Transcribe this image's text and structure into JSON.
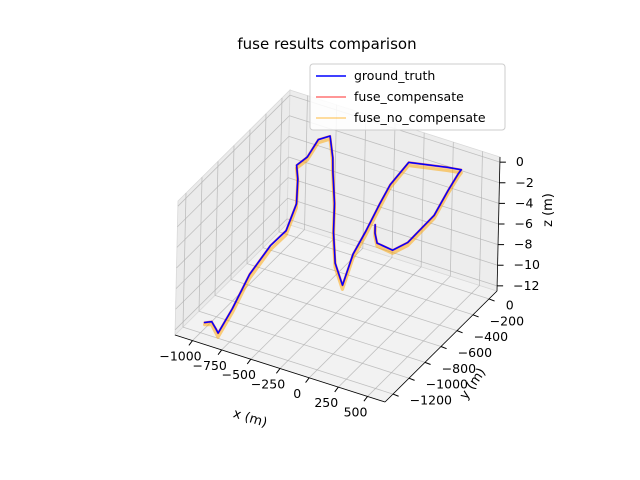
{
  "chart_data": {
    "type": "line",
    "projection": "3d",
    "title": "fuse results comparison",
    "xlabel": "x (m)",
    "ylabel": "y (m)",
    "zlabel": "z (m)",
    "xlim": [
      -1150,
      650
    ],
    "ylim": [
      -1300,
      100
    ],
    "zlim": [
      -12.5,
      0.5
    ],
    "x_ticks": [
      -1000,
      -750,
      -500,
      -250,
      0,
      250,
      500
    ],
    "x_tick_labels": [
      "−1000",
      "−750",
      "−500",
      "−250",
      "0",
      "250",
      "500"
    ],
    "y_ticks": [
      -1200,
      -1000,
      -800,
      -600,
      -400,
      -200,
      0
    ],
    "y_tick_labels": [
      "−1200",
      "−1000",
      "−800",
      "−600",
      "−400",
      "−200",
      "0"
    ],
    "z_ticks": [
      -12,
      -10,
      -8,
      -6,
      -4,
      -2,
      0
    ],
    "z_tick_labels": [
      "−12",
      "−10",
      "−8",
      "−6",
      "−4",
      "−2",
      "0"
    ],
    "grid": true,
    "legend_position": "top-right",
    "series": [
      {
        "name": "ground_truth",
        "color": "#0000ff",
        "x": [
          -980,
          -940,
          -900,
          -850,
          -800,
          -780,
          -740,
          -690,
          -700,
          -760,
          -820,
          -870,
          -860,
          -780,
          -680,
          -610,
          -430,
          -300,
          -160,
          -40,
          -10,
          -5,
          10,
          20,
          60,
          300,
          430,
          470,
          480,
          460,
          360,
          280,
          100,
          40,
          0
        ],
        "y": [
          -1180,
          -1150,
          -1150,
          -1200,
          -1100,
          -920,
          -720,
          -600,
          -460,
          -360,
          -290,
          -80,
          40,
          70,
          -40,
          -140,
          -380,
          -580,
          -760,
          -840,
          -760,
          -610,
          -460,
          -350,
          -180,
          -40,
          -60,
          -160,
          -300,
          -440,
          -620,
          -690,
          -620,
          -560,
          -500
        ],
        "z": [
          -11.6,
          -11.6,
          -12.2,
          -12.0,
          -10.2,
          -8.2,
          -6.8,
          -6.1,
          -4.6,
          -3.2,
          -2.6,
          -3.6,
          -2.8,
          -2.4,
          -3.3,
          -3.6,
          -4.2,
          -5.0,
          -6.1,
          -7.2,
          -4.7,
          -3.6,
          -2.0,
          -1.0,
          0.0,
          -0.7,
          -0.3,
          0.2,
          -0.3,
          -1.7,
          -3.3,
          -3.8,
          -4.3,
          -4.0,
          -3.8
        ]
      },
      {
        "name": "fuse_compensate",
        "color": "#ff0000",
        "opacity": 0.55,
        "x": [
          -980,
          -940,
          -900,
          -850,
          -800,
          -780,
          -740,
          -690,
          -700,
          -760,
          -820,
          -870,
          -860,
          -780,
          -680,
          -610,
          -430,
          -300,
          -160,
          -40,
          -10,
          -5,
          10,
          20,
          60,
          300,
          430,
          470,
          480,
          460,
          360,
          280,
          100,
          40,
          0
        ],
        "y": [
          -1180,
          -1150,
          -1150,
          -1200,
          -1100,
          -920,
          -720,
          -600,
          -460,
          -360,
          -290,
          -80,
          40,
          70,
          -40,
          -140,
          -380,
          -580,
          -760,
          -840,
          -760,
          -610,
          -460,
          -350,
          -180,
          -40,
          -60,
          -160,
          -300,
          -440,
          -620,
          -690,
          -620,
          -560,
          -500
        ],
        "z": [
          -11.6,
          -11.6,
          -12.2,
          -12.0,
          -10.2,
          -8.2,
          -6.8,
          -6.1,
          -4.6,
          -3.2,
          -2.6,
          -3.6,
          -2.8,
          -2.4,
          -3.3,
          -3.6,
          -4.2,
          -5.0,
          -6.1,
          -7.2,
          -4.7,
          -3.6,
          -2.0,
          -1.0,
          0.0,
          -0.7,
          -0.3,
          0.2,
          -0.3,
          -1.7,
          -3.3,
          -3.8,
          -4.3,
          -4.0,
          -3.8
        ]
      },
      {
        "name": "fuse_no_compensate",
        "color": "#ffa500",
        "opacity": 0.5,
        "x": [
          -980,
          -940,
          -900,
          -850,
          -800,
          -780,
          -740,
          -690,
          -700,
          -760,
          -820,
          -870,
          -860,
          -780,
          -680,
          -610,
          -430,
          -300,
          -160,
          -40,
          -10,
          -5,
          10,
          20,
          60,
          300,
          430,
          470,
          480,
          460,
          360,
          280,
          100,
          40,
          0
        ],
        "y": [
          -1180,
          -1150,
          -1150,
          -1200,
          -1100,
          -920,
          -720,
          -600,
          -460,
          -360,
          -290,
          -80,
          40,
          70,
          -40,
          -140,
          -380,
          -580,
          -760,
          -840,
          -760,
          -610,
          -460,
          -350,
          -180,
          -40,
          -60,
          -160,
          -300,
          -440,
          -620,
          -690,
          -620,
          -560,
          -500
        ],
        "z": [
          -11.8,
          -11.9,
          -12.6,
          -12.4,
          -10.6,
          -8.6,
          -7.2,
          -6.5,
          -5.0,
          -3.5,
          -2.9,
          -3.9,
          -3.1,
          -2.7,
          -3.6,
          -3.9,
          -4.6,
          -5.4,
          -6.5,
          -7.6,
          -5.1,
          -4.0,
          -2.4,
          -1.3,
          -0.3,
          -1.0,
          -0.6,
          -0.1,
          -0.6,
          -2.0,
          -3.6,
          -4.1,
          -4.6,
          -4.3,
          -4.1
        ]
      }
    ]
  }
}
